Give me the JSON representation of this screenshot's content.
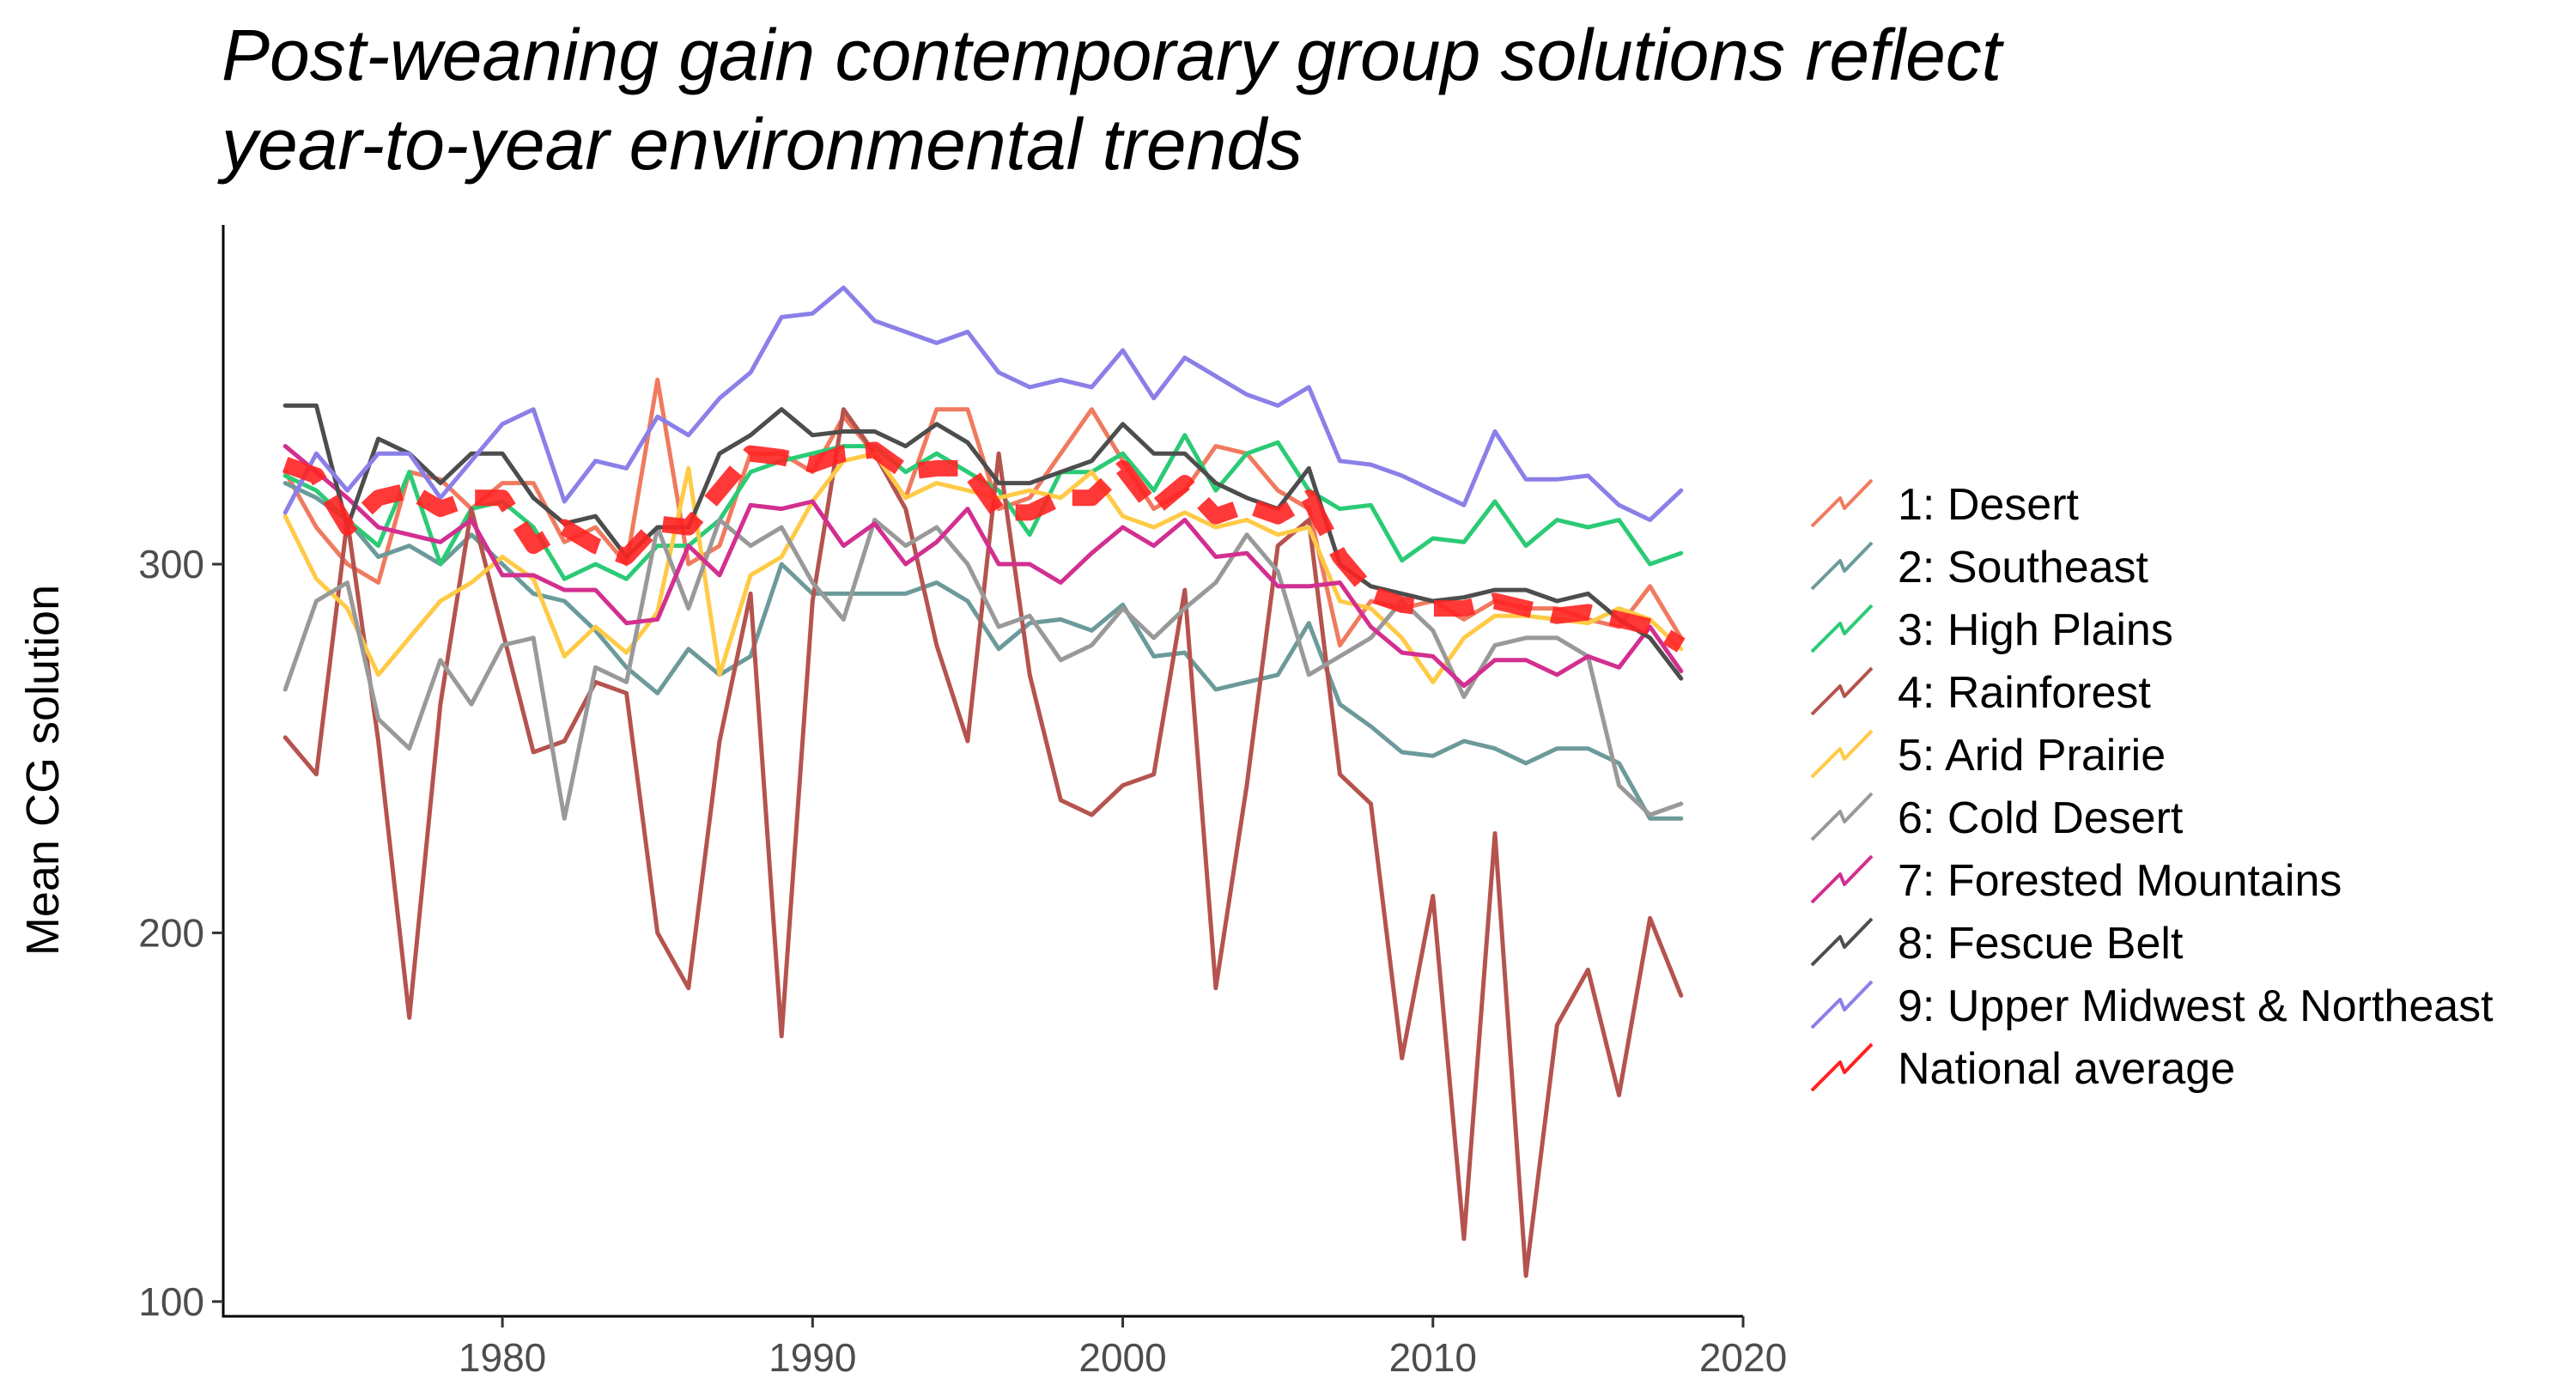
{
  "chart_data": {
    "type": "line",
    "title_lines": [
      "Post-weaning gain contemporary group solutions reflect",
      "year-to-year environmental trends"
    ],
    "xlabel": "",
    "ylabel": "Mean CG solution",
    "xlim": [
      1971,
      2020
    ],
    "ylim": [
      96,
      392
    ],
    "x_ticks": [
      1980,
      1990,
      2000,
      2010,
      2020
    ],
    "y_ticks": [
      100,
      200,
      300
    ],
    "grid": false,
    "legend_position": "right",
    "x": [
      1973,
      1974,
      1975,
      1976,
      1977,
      1978,
      1979,
      1980,
      1981,
      1982,
      1983,
      1984,
      1985,
      1986,
      1987,
      1988,
      1989,
      1990,
      1991,
      1992,
      1993,
      1994,
      1995,
      1996,
      1997,
      1998,
      1999,
      2000,
      2001,
      2002,
      2003,
      2004,
      2005,
      2006,
      2007,
      2008,
      2009,
      2010,
      2011,
      2012,
      2013,
      2014,
      2015,
      2016,
      2017,
      2018
    ],
    "series": [
      {
        "name": "1: Desert",
        "color": "#F07A5F",
        "values": [
          325,
          310,
          300,
          295,
          325,
          323,
          315,
          322,
          322,
          306,
          310,
          300,
          350,
          300,
          305,
          330,
          330,
          325,
          340,
          330,
          318,
          342,
          342,
          315,
          318,
          330,
          342,
          328,
          315,
          320,
          332,
          330,
          320,
          315,
          278,
          290,
          288,
          290,
          285,
          290,
          288,
          288,
          285,
          283,
          294,
          280
        ]
      },
      {
        "name": "2: Southeast",
        "color": "#6C9A9A",
        "values": [
          322,
          318,
          312,
          302,
          305,
          300,
          308,
          300,
          292,
          290,
          282,
          272,
          265,
          277,
          270,
          275,
          300,
          292,
          292,
          292,
          292,
          295,
          290,
          277,
          284,
          285,
          282,
          289,
          275,
          276,
          266,
          268,
          270,
          284,
          262,
          256,
          249,
          248,
          252,
          250,
          246,
          250,
          250,
          246,
          231,
          231
        ]
      },
      {
        "name": "3: High Plains",
        "color": "#2BCB75",
        "values": [
          324,
          320,
          312,
          305,
          325,
          300,
          315,
          317,
          310,
          296,
          300,
          296,
          305,
          305,
          312,
          325,
          328,
          330,
          332,
          332,
          325,
          330,
          325,
          320,
          308,
          325,
          325,
          330,
          320,
          335,
          320,
          330,
          333,
          320,
          315,
          316,
          301,
          307,
          306,
          317,
          305,
          312,
          310,
          312,
          300,
          303
        ]
      },
      {
        "name": "4: Rainforest",
        "color": "#B5534E",
        "values": [
          253,
          243,
          312,
          252,
          177,
          262,
          315,
          282,
          249,
          252,
          268,
          265,
          200,
          185,
          252,
          292,
          172,
          290,
          342,
          330,
          315,
          278,
          252,
          330,
          270,
          236,
          232,
          240,
          243,
          293,
          185,
          240,
          305,
          312,
          243,
          235,
          166,
          210,
          117,
          227,
          107,
          175,
          190,
          156,
          204,
          183
        ]
      },
      {
        "name": "5: Arid Prairie",
        "color": "#FFCA45",
        "values": [
          313,
          296,
          288,
          270,
          280,
          290,
          295,
          302,
          296,
          275,
          283,
          276,
          287,
          326,
          270,
          297,
          302,
          317,
          328,
          330,
          318,
          322,
          320,
          318,
          320,
          318,
          325,
          313,
          310,
          314,
          310,
          312,
          308,
          310,
          290,
          288,
          280,
          268,
          280,
          286,
          286,
          285,
          284,
          288,
          285,
          277
        ]
      },
      {
        "name": "6: Cold Desert",
        "color": "#999999",
        "values": [
          266,
          290,
          295,
          258,
          250,
          274,
          262,
          278,
          280,
          231,
          272,
          268,
          310,
          288,
          312,
          305,
          310,
          295,
          285,
          312,
          305,
          310,
          300,
          283,
          286,
          274,
          278,
          288,
          280,
          288,
          295,
          308,
          298,
          270,
          275,
          280,
          290,
          282,
          264,
          278,
          280,
          280,
          275,
          240,
          232,
          235
        ]
      },
      {
        "name": "7: Forested Mountains",
        "color": "#D22F90",
        "values": [
          332,
          325,
          318,
          310,
          308,
          306,
          312,
          297,
          297,
          293,
          293,
          284,
          285,
          305,
          297,
          316,
          315,
          317,
          305,
          311,
          300,
          306,
          315,
          300,
          300,
          295,
          303,
          310,
          305,
          312,
          302,
          303,
          294,
          294,
          295,
          283,
          276,
          275,
          267,
          274,
          274,
          270,
          275,
          272,
          283,
          271
        ]
      },
      {
        "name": "8: Fescue Belt",
        "color": "#4D4D4D",
        "values": [
          343,
          343,
          310,
          334,
          330,
          322,
          330,
          330,
          318,
          311,
          313,
          302,
          310,
          310,
          330,
          335,
          342,
          335,
          336,
          336,
          332,
          338,
          333,
          322,
          322,
          325,
          328,
          338,
          330,
          330,
          322,
          318,
          315,
          326,
          300,
          294,
          292,
          290,
          291,
          293,
          293,
          290,
          292,
          285,
          280,
          269
        ]
      },
      {
        "name": "9: Upper Midwest & Northeast",
        "color": "#8B7FE8",
        "values": [
          314,
          330,
          320,
          330,
          330,
          318,
          328,
          338,
          342,
          317,
          328,
          326,
          340,
          335,
          345,
          352,
          367,
          368,
          375,
          366,
          363,
          360,
          363,
          352,
          348,
          350,
          348,
          358,
          345,
          356,
          351,
          346,
          343,
          348,
          328,
          327,
          324,
          320,
          316,
          336,
          323,
          323,
          324,
          316,
          312,
          320
        ]
      },
      {
        "name": "National average",
        "color": "#FF2222",
        "dashed": true,
        "values": [
          327,
          324,
          310,
          318,
          320,
          315,
          318,
          318,
          305,
          310,
          305,
          302,
          311,
          310,
          320,
          330,
          329,
          327,
          330,
          331,
          325,
          326,
          326,
          314,
          314,
          318,
          318,
          326,
          315,
          322,
          313,
          316,
          313,
          318,
          302,
          292,
          289,
          288,
          288,
          290,
          288,
          286,
          287,
          285,
          283,
          278
        ]
      }
    ]
  }
}
